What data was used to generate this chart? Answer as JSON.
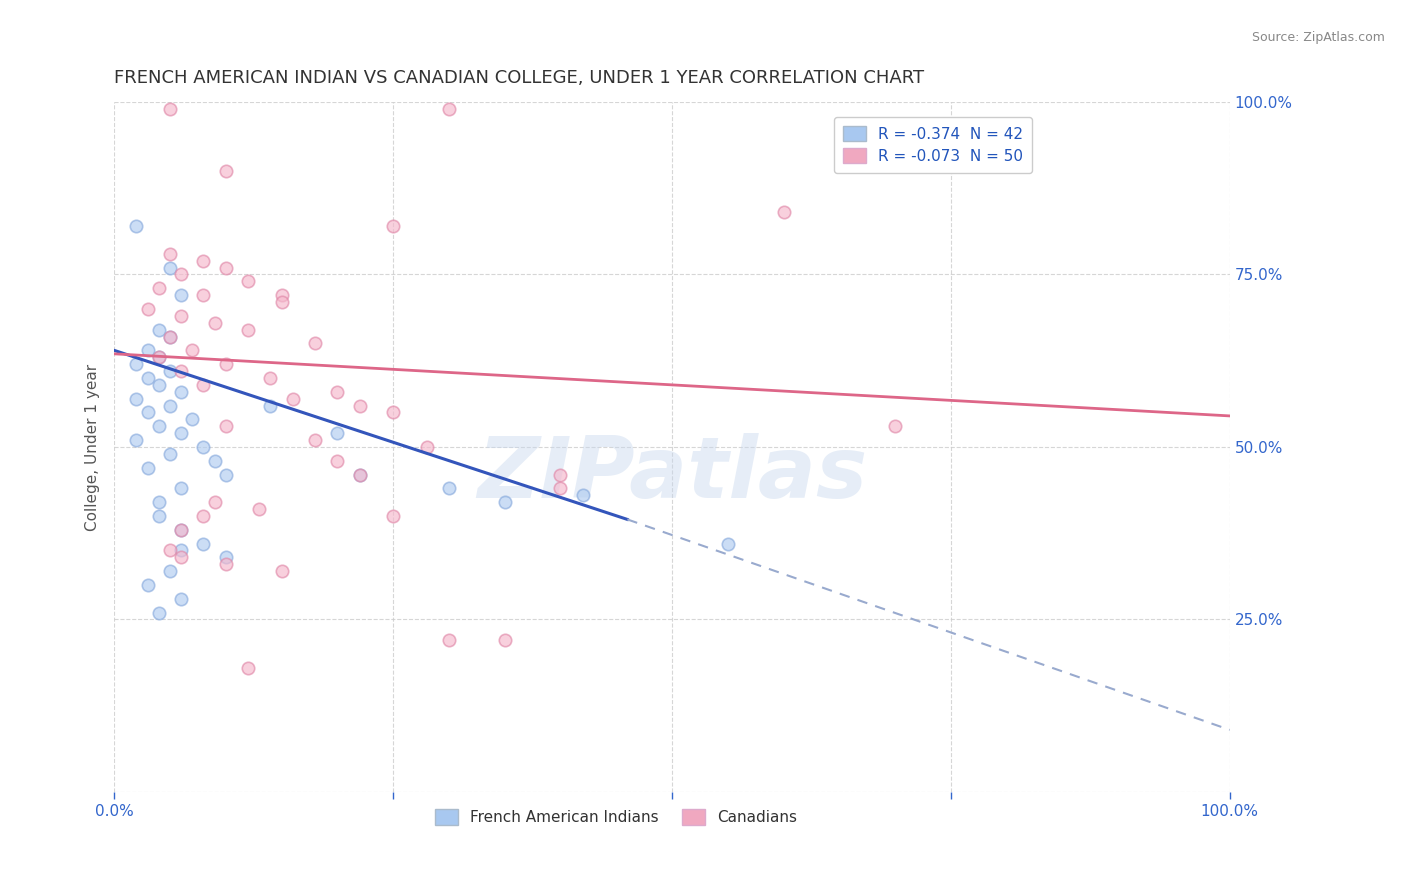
{
  "title": "FRENCH AMERICAN INDIAN VS CANADIAN COLLEGE, UNDER 1 YEAR CORRELATION CHART",
  "source": "Source: ZipAtlas.com",
  "ylabel": "College, Under 1 year",
  "right_ytick_labels": [
    "100.0%",
    "75.0%",
    "50.0%",
    "25.0%"
  ],
  "right_ytick_values": [
    1.0,
    0.75,
    0.5,
    0.25
  ],
  "xlim": [
    0.0,
    1.0
  ],
  "ylim": [
    0.0,
    1.0
  ],
  "legend_label_blue": "R = -0.374  N = 42",
  "legend_label_pink": "R = -0.073  N = 50",
  "legend_color_blue": "#a8c8f0",
  "legend_color_pink": "#f0a8c0",
  "legend_r_color": "#2255bb",
  "blue_scatter": [
    [
      0.02,
      0.82
    ],
    [
      0.05,
      0.76
    ],
    [
      0.06,
      0.72
    ],
    [
      0.04,
      0.67
    ],
    [
      0.05,
      0.66
    ],
    [
      0.03,
      0.64
    ],
    [
      0.04,
      0.63
    ],
    [
      0.02,
      0.62
    ],
    [
      0.05,
      0.61
    ],
    [
      0.03,
      0.6
    ],
    [
      0.04,
      0.59
    ],
    [
      0.06,
      0.58
    ],
    [
      0.02,
      0.57
    ],
    [
      0.05,
      0.56
    ],
    [
      0.14,
      0.56
    ],
    [
      0.03,
      0.55
    ],
    [
      0.07,
      0.54
    ],
    [
      0.04,
      0.53
    ],
    [
      0.2,
      0.52
    ],
    [
      0.06,
      0.52
    ],
    [
      0.02,
      0.51
    ],
    [
      0.08,
      0.5
    ],
    [
      0.05,
      0.49
    ],
    [
      0.09,
      0.48
    ],
    [
      0.03,
      0.47
    ],
    [
      0.1,
      0.46
    ],
    [
      0.22,
      0.46
    ],
    [
      0.06,
      0.44
    ],
    [
      0.3,
      0.44
    ],
    [
      0.04,
      0.42
    ],
    [
      0.35,
      0.42
    ],
    [
      0.04,
      0.4
    ],
    [
      0.06,
      0.38
    ],
    [
      0.08,
      0.36
    ],
    [
      0.06,
      0.35
    ],
    [
      0.1,
      0.34
    ],
    [
      0.05,
      0.32
    ],
    [
      0.03,
      0.3
    ],
    [
      0.42,
      0.43
    ],
    [
      0.06,
      0.28
    ],
    [
      0.55,
      0.36
    ],
    [
      0.04,
      0.26
    ]
  ],
  "pink_scatter": [
    [
      0.05,
      0.99
    ],
    [
      0.3,
      0.99
    ],
    [
      0.1,
      0.9
    ],
    [
      0.25,
      0.82
    ],
    [
      0.6,
      0.84
    ],
    [
      0.05,
      0.78
    ],
    [
      0.08,
      0.77
    ],
    [
      0.1,
      0.76
    ],
    [
      0.06,
      0.75
    ],
    [
      0.12,
      0.74
    ],
    [
      0.04,
      0.73
    ],
    [
      0.08,
      0.72
    ],
    [
      0.15,
      0.72
    ],
    [
      0.15,
      0.71
    ],
    [
      0.03,
      0.7
    ],
    [
      0.06,
      0.69
    ],
    [
      0.09,
      0.68
    ],
    [
      0.12,
      0.67
    ],
    [
      0.05,
      0.66
    ],
    [
      0.18,
      0.65
    ],
    [
      0.07,
      0.64
    ],
    [
      0.04,
      0.63
    ],
    [
      0.1,
      0.62
    ],
    [
      0.06,
      0.61
    ],
    [
      0.14,
      0.6
    ],
    [
      0.08,
      0.59
    ],
    [
      0.2,
      0.58
    ],
    [
      0.16,
      0.57
    ],
    [
      0.22,
      0.56
    ],
    [
      0.25,
      0.55
    ],
    [
      0.1,
      0.53
    ],
    [
      0.7,
      0.53
    ],
    [
      0.18,
      0.51
    ],
    [
      0.28,
      0.5
    ],
    [
      0.2,
      0.48
    ],
    [
      0.22,
      0.46
    ],
    [
      0.08,
      0.4
    ],
    [
      0.06,
      0.38
    ],
    [
      0.4,
      0.46
    ],
    [
      0.4,
      0.44
    ],
    [
      0.3,
      0.22
    ],
    [
      0.35,
      0.22
    ],
    [
      0.12,
      0.18
    ],
    [
      0.05,
      0.35
    ],
    [
      0.06,
      0.34
    ],
    [
      0.1,
      0.33
    ],
    [
      0.15,
      0.32
    ],
    [
      0.25,
      0.4
    ],
    [
      0.13,
      0.41
    ],
    [
      0.09,
      0.42
    ]
  ],
  "blue_solid_line": [
    [
      0.0,
      0.64
    ],
    [
      0.46,
      0.395
    ]
  ],
  "blue_dashed_line": [
    [
      0.46,
      0.395
    ],
    [
      1.0,
      0.09
    ]
  ],
  "pink_solid_line": [
    [
      0.0,
      0.635
    ],
    [
      1.0,
      0.545
    ]
  ],
  "watermark_text": "ZIPatlas",
  "watermark_color": "#c8d8ee",
  "watermark_alpha": 0.45,
  "title_fontsize": 13,
  "title_color": "#333333",
  "axis_color": "#3366cc",
  "scatter_alpha": 0.65,
  "scatter_size": 80,
  "grid_color": "#cccccc",
  "background_color": "#ffffff",
  "bottom_legend_blue": "French American Indians",
  "bottom_legend_pink": "Canadians"
}
